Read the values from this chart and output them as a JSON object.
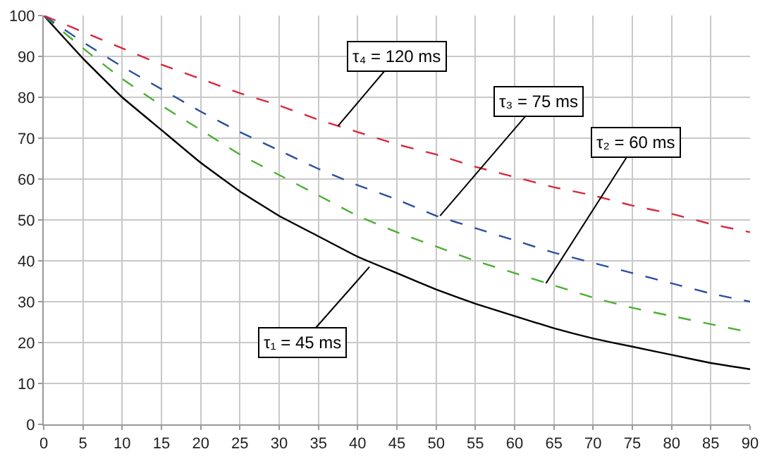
{
  "chart_data": {
    "type": "line",
    "x": [
      0,
      5,
      10,
      15,
      20,
      25,
      30,
      35,
      40,
      45,
      50,
      55,
      60,
      65,
      70,
      75,
      80,
      85,
      90
    ],
    "series": [
      {
        "color": "#000000",
        "line_style": "solid",
        "values": [
          100,
          89.5,
          80,
          72,
          64,
          57,
          51,
          46,
          41,
          37,
          33,
          29.5,
          26.5,
          23.5,
          21,
          19,
          17,
          15,
          13.5
        ]
      },
      {
        "color": "#4caf32",
        "line_style": "dashed",
        "values": [
          100,
          92,
          84.5,
          78,
          72,
          66,
          61,
          56,
          51,
          47,
          43.5,
          40,
          37,
          34,
          31,
          28.5,
          26.5,
          24.5,
          22.5
        ]
      },
      {
        "color": "#2a4f9e",
        "line_style": "dashed",
        "values": [
          100,
          93.5,
          87.5,
          82,
          76.5,
          71.5,
          67,
          62.5,
          58.5,
          55,
          51,
          48,
          45,
          42,
          39.5,
          37,
          34.5,
          32,
          30
        ]
      },
      {
        "color": "#d8283c",
        "line_style": "dashed",
        "values": [
          100,
          96,
          92,
          88,
          84.5,
          81,
          78,
          74.5,
          71.5,
          68.5,
          66,
          63,
          60.5,
          58,
          56,
          53.5,
          51.5,
          49,
          47
        ]
      }
    ],
    "annotations": [
      {
        "text": "τ₁ = 45 ms",
        "x": 41.5,
        "y": 38.5
      },
      {
        "text": "τ₂ = 60 ms",
        "x": 64,
        "y": 34.5
      },
      {
        "text": "τ₃ = 75 ms",
        "x": 50.5,
        "y": 51
      },
      {
        "text": "τ₄ = 120 ms",
        "x": 37.5,
        "y": 73
      }
    ],
    "xlim": [
      0,
      90
    ],
    "xticks": [
      0,
      5,
      10,
      15,
      20,
      25,
      30,
      35,
      40,
      45,
      50,
      55,
      60,
      65,
      70,
      75,
      80,
      85,
      90
    ],
    "ylim": [
      0,
      100
    ],
    "yticks": [
      0,
      10,
      20,
      30,
      40,
      50,
      60,
      70,
      80,
      90,
      100
    ],
    "grid": true,
    "legend": false,
    "marker": "none"
  }
}
